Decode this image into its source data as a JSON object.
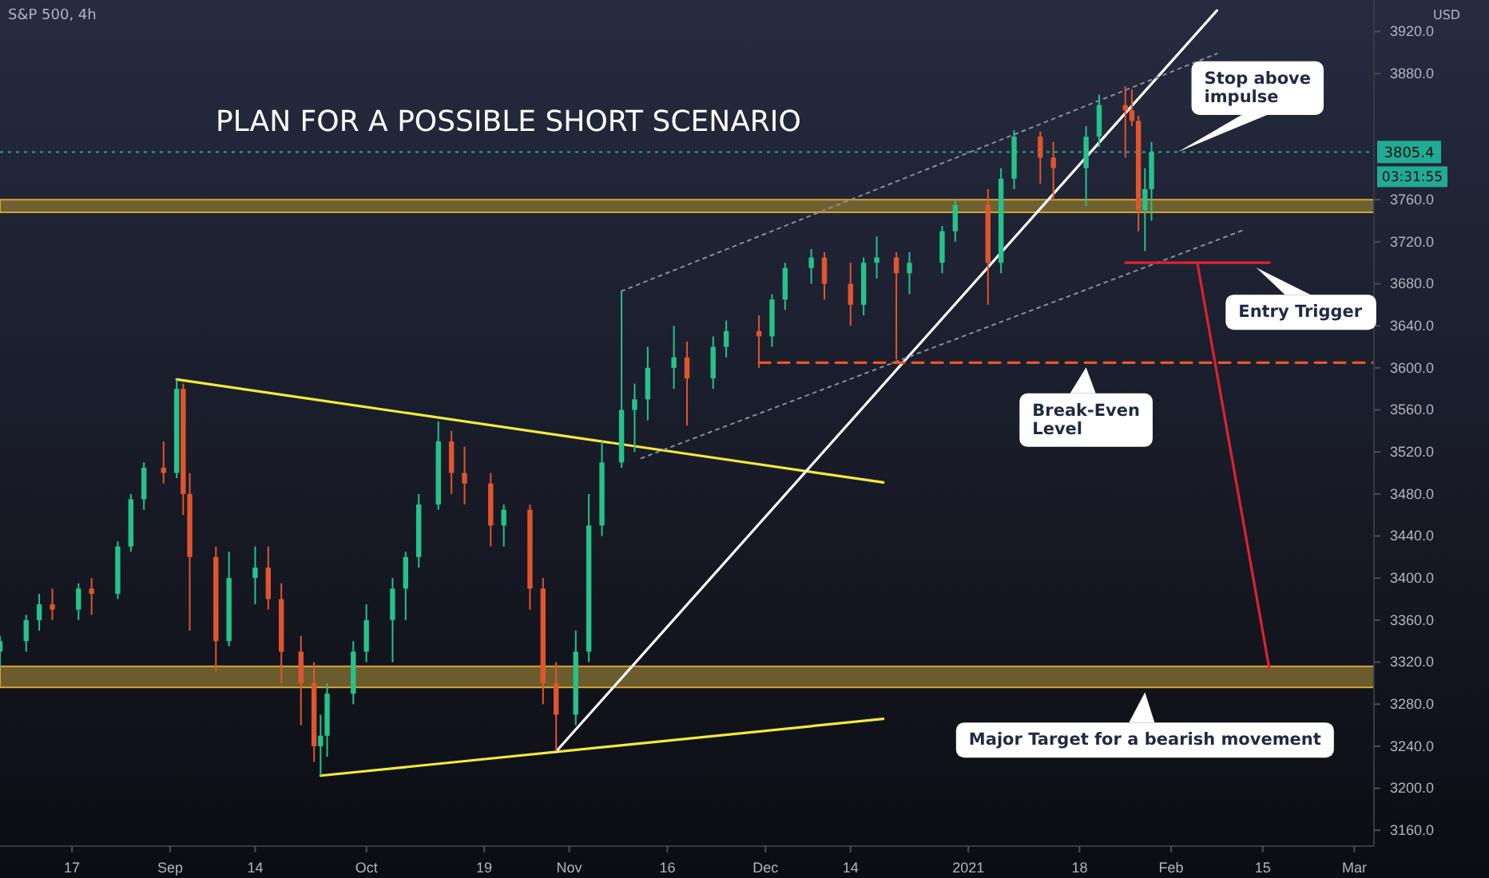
{
  "chart_data": {
    "type": "candlestick",
    "title": "S&P 500, 4h",
    "subtitle": "PLAN FOR A POSSIBLE SHORT SCENARIO",
    "ylabel": "USD",
    "xlim": [
      "2020-08-06",
      "2021-03-04"
    ],
    "ylim": [
      3145,
      3950
    ],
    "xticks": [
      {
        "value": "2020-08-17",
        "label": "17"
      },
      {
        "value": "2020-09-01",
        "label": "Sep"
      },
      {
        "value": "2020-09-14",
        "label": "14"
      },
      {
        "value": "2020-10-01",
        "label": "Oct"
      },
      {
        "value": "2020-10-19",
        "label": "19"
      },
      {
        "value": "2020-11-01",
        "label": "Nov"
      },
      {
        "value": "2020-11-16",
        "label": "16"
      },
      {
        "value": "2020-12-01",
        "label": "Dec"
      },
      {
        "value": "2020-12-14",
        "label": "14"
      },
      {
        "value": "2021-01-01",
        "label": "2021"
      },
      {
        "value": "2021-01-18",
        "label": "18"
      },
      {
        "value": "2021-02-01",
        "label": "Feb"
      },
      {
        "value": "2021-02-15",
        "label": "15"
      },
      {
        "value": "2021-03-01",
        "label": "Mar"
      }
    ],
    "yticks": [
      {
        "value": 3160,
        "label": "3160.0"
      },
      {
        "value": 3200,
        "label": "3200.0"
      },
      {
        "value": 3240,
        "label": "3240.0"
      },
      {
        "value": 3280,
        "label": "3280.0"
      },
      {
        "value": 3320,
        "label": "3320.0"
      },
      {
        "value": 3360,
        "label": "3360.0"
      },
      {
        "value": 3400,
        "label": "3400.0"
      },
      {
        "value": 3440,
        "label": "3440.0"
      },
      {
        "value": 3480,
        "label": "3480.0"
      },
      {
        "value": 3520,
        "label": "3520.0"
      },
      {
        "value": 3560,
        "label": "3560.0"
      },
      {
        "value": 3600,
        "label": "3600.0"
      },
      {
        "value": 3640,
        "label": "3640.0"
      },
      {
        "value": 3680,
        "label": "3680.0"
      },
      {
        "value": 3720,
        "label": "3720.0"
      },
      {
        "value": 3760,
        "label": "3760.0"
      },
      {
        "value": 3880,
        "label": "3880.0"
      },
      {
        "value": 3920,
        "label": "3920.0"
      }
    ],
    "x": [
      "2020-08-06",
      "2020-08-10",
      "2020-08-12",
      "2020-08-14",
      "2020-08-18",
      "2020-08-20",
      "2020-08-24",
      "2020-08-26",
      "2020-08-28",
      "2020-08-31",
      "2020-09-02",
      "2020-09-03",
      "2020-09-04",
      "2020-09-08",
      "2020-09-10",
      "2020-09-14",
      "2020-09-16",
      "2020-09-18",
      "2020-09-21",
      "2020-09-23",
      "2020-09-24",
      "2020-09-25",
      "2020-09-29",
      "2020-10-01",
      "2020-10-05",
      "2020-10-07",
      "2020-10-09",
      "2020-10-12",
      "2020-10-14",
      "2020-10-16",
      "2020-10-20",
      "2020-10-22",
      "2020-10-26",
      "2020-10-28",
      "2020-10-30",
      "2020-11-02",
      "2020-11-04",
      "2020-11-06",
      "2020-11-09",
      "2020-11-11",
      "2020-11-13",
      "2020-11-17",
      "2020-11-19",
      "2020-11-23",
      "2020-11-25",
      "2020-11-30",
      "2020-12-02",
      "2020-12-04",
      "2020-12-08",
      "2020-12-10",
      "2020-12-14",
      "2020-12-16",
      "2020-12-18",
      "2020-12-21",
      "2020-12-23",
      "2020-12-28",
      "2020-12-30",
      "2021-01-04",
      "2021-01-06",
      "2021-01-08",
      "2021-01-12",
      "2021-01-14",
      "2021-01-19",
      "2021-01-21",
      "2021-01-25",
      "2021-01-26",
      "2021-01-27",
      "2021-01-28",
      "2021-01-29"
    ],
    "ohlc": [
      [
        3330,
        3345,
        3315,
        3340
      ],
      [
        3340,
        3365,
        3330,
        3360
      ],
      [
        3360,
        3385,
        3350,
        3375
      ],
      [
        3375,
        3390,
        3360,
        3370
      ],
      [
        3370,
        3395,
        3360,
        3390
      ],
      [
        3390,
        3400,
        3365,
        3385
      ],
      [
        3385,
        3435,
        3380,
        3430
      ],
      [
        3430,
        3480,
        3425,
        3475
      ],
      [
        3475,
        3510,
        3465,
        3505
      ],
      [
        3505,
        3530,
        3490,
        3500
      ],
      [
        3500,
        3589,
        3495,
        3580
      ],
      [
        3580,
        3585,
        3460,
        3480
      ],
      [
        3480,
        3500,
        3350,
        3420
      ],
      [
        3420,
        3430,
        3311,
        3340
      ],
      [
        3340,
        3425,
        3335,
        3400
      ],
      [
        3400,
        3430,
        3375,
        3410
      ],
      [
        3410,
        3430,
        3370,
        3380
      ],
      [
        3380,
        3395,
        3300,
        3330
      ],
      [
        3330,
        3345,
        3260,
        3300
      ],
      [
        3300,
        3320,
        3225,
        3240
      ],
      [
        3240,
        3270,
        3212,
        3250
      ],
      [
        3250,
        3300,
        3230,
        3290
      ],
      [
        3290,
        3340,
        3280,
        3330
      ],
      [
        3330,
        3375,
        3320,
        3360
      ],
      [
        3360,
        3400,
        3320,
        3390
      ],
      [
        3390,
        3425,
        3360,
        3420
      ],
      [
        3420,
        3480,
        3410,
        3470
      ],
      [
        3470,
        3549,
        3465,
        3530
      ],
      [
        3530,
        3540,
        3480,
        3500
      ],
      [
        3500,
        3525,
        3470,
        3490
      ],
      [
        3490,
        3500,
        3430,
        3450
      ],
      [
        3450,
        3470,
        3430,
        3465
      ],
      [
        3465,
        3470,
        3370,
        3390
      ],
      [
        3390,
        3400,
        3280,
        3300
      ],
      [
        3300,
        3320,
        3235,
        3270
      ],
      [
        3270,
        3350,
        3260,
        3330
      ],
      [
        3330,
        3480,
        3320,
        3450
      ],
      [
        3450,
        3530,
        3440,
        3510
      ],
      [
        3510,
        3673,
        3505,
        3560
      ],
      [
        3560,
        3585,
        3520,
        3570
      ],
      [
        3570,
        3620,
        3550,
        3600
      ],
      [
        3600,
        3640,
        3580,
        3610
      ],
      [
        3610,
        3625,
        3545,
        3590
      ],
      [
        3590,
        3630,
        3580,
        3620
      ],
      [
        3620,
        3645,
        3610,
        3635
      ],
      [
        3635,
        3650,
        3600,
        3630
      ],
      [
        3630,
        3670,
        3620,
        3665
      ],
      [
        3665,
        3700,
        3655,
        3695
      ],
      [
        3695,
        3713,
        3680,
        3705
      ],
      [
        3705,
        3710,
        3665,
        3680
      ],
      [
        3680,
        3700,
        3640,
        3660
      ],
      [
        3660,
        3705,
        3650,
        3700
      ],
      [
        3700,
        3725,
        3685,
        3705
      ],
      [
        3705,
        3710,
        3608,
        3690
      ],
      [
        3690,
        3710,
        3670,
        3700
      ],
      [
        3700,
        3735,
        3690,
        3730
      ],
      [
        3730,
        3760,
        3720,
        3755
      ],
      [
        3755,
        3770,
        3660,
        3700
      ],
      [
        3700,
        3790,
        3690,
        3780
      ],
      [
        3780,
        3826,
        3770,
        3820
      ],
      [
        3820,
        3825,
        3775,
        3800
      ],
      [
        3800,
        3815,
        3760,
        3790
      ],
      [
        3790,
        3830,
        3754,
        3820
      ],
      [
        3820,
        3860,
        3810,
        3850
      ],
      [
        3850,
        3868,
        3800,
        3845
      ],
      [
        3845,
        3865,
        3830,
        3835
      ],
      [
        3835,
        3840,
        3730,
        3750
      ],
      [
        3750,
        3790,
        3711,
        3770
      ],
      [
        3770,
        3815,
        3740,
        3805.4
      ]
    ],
    "series": [
      {
        "type": "line",
        "color": "#f2ea3c",
        "x": [
          "2020-09-02",
          "2020-12-19"
        ],
        "values": [
          3589,
          3491
        ]
      },
      {
        "type": "line",
        "color": "#f2ea3c",
        "x": [
          "2020-09-24",
          "2020-12-19"
        ],
        "values": [
          3212,
          3266
        ]
      },
      {
        "type": "line",
        "color": "#ffffff",
        "x": [
          "2020-10-30",
          "2021-02-08"
        ],
        "values": [
          3235,
          3940
        ]
      },
      {
        "type": "line",
        "color": "#8a8e9c",
        "line_style": "dotted",
        "x": [
          "2020-11-09",
          "2021-02-08"
        ],
        "values": [
          3673,
          3899
        ]
      },
      {
        "type": "line",
        "color": "#8a8e9c",
        "line_style": "dotted",
        "x": [
          "2020-11-12",
          "2021-02-12"
        ],
        "values": [
          3514,
          3731
        ]
      },
      {
        "type": "line",
        "color": "#e8572a",
        "line_style": "dashed",
        "x": [
          "2020-11-30",
          "2021-03-04"
        ],
        "values": [
          3605,
          3605
        ]
      },
      {
        "type": "line",
        "color": "#e0212e",
        "x": [
          "2021-01-25",
          "2021-02-16"
        ],
        "values": [
          3700,
          3700
        ]
      },
      {
        "type": "line",
        "color": "#e0212e",
        "x": [
          "2021-02-05",
          "2021-02-16"
        ],
        "values": [
          3700,
          3314
        ]
      }
    ],
    "bands": [
      {
        "axis": "y",
        "from": 3296,
        "to": 3316,
        "color": "#8a7434"
      },
      {
        "axis": "y",
        "from": 3748,
        "to": 3760,
        "color": "#8a7434"
      }
    ],
    "ref_lines": [
      {
        "axis": "y",
        "value": 3805.4,
        "label": "3805.4",
        "color": "#22ab94",
        "line_style": "dotted"
      }
    ],
    "annotations": [
      {
        "text": "Stop above impulse",
        "x": "2021-02-02",
        "y": 3805.4
      },
      {
        "text": "Entry Trigger",
        "x": "2021-02-14",
        "y": 3700
      },
      {
        "text": "Break-Even Level",
        "x": "2021-01-19",
        "y": 3605
      },
      {
        "text": "Major Target for a bearish movement",
        "x": "2021-01-28",
        "y": 3296
      },
      "03:31:55"
    ]
  }
}
